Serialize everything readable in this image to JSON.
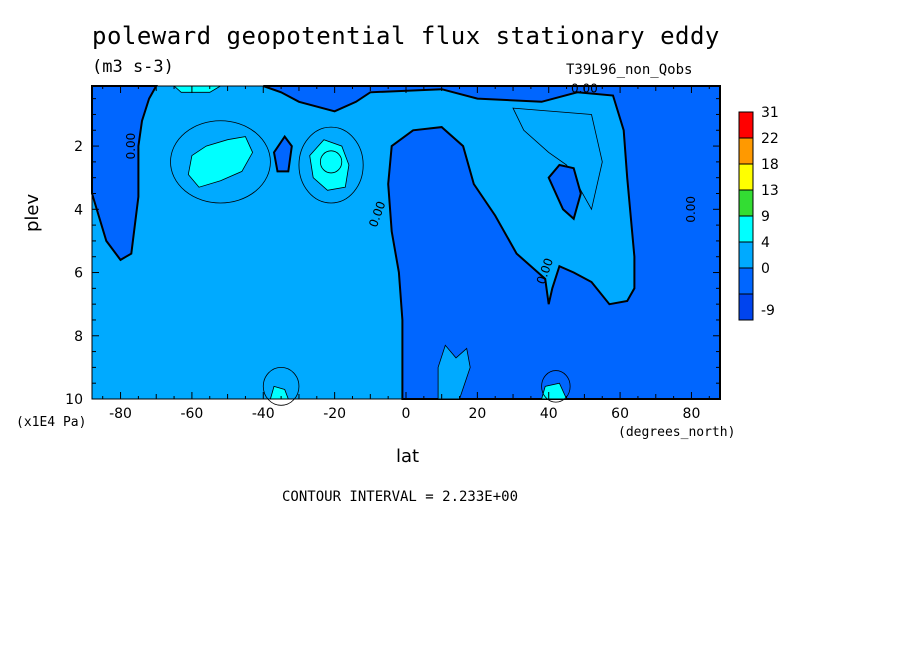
{
  "chart_data": {
    "type": "heatmap",
    "title": "poleward geopotential flux stationary eddy",
    "subtitle": "(m3 s-3)",
    "run_label": "T39L96_non_Qobs",
    "xlabel": "lat",
    "ylabel": "plev",
    "x_units": "(degrees_north)",
    "y_units": "(x1E4 Pa)",
    "xlim": [
      -88,
      88
    ],
    "ylim": [
      10,
      0.1
    ],
    "x_ticks": [
      -80,
      -60,
      -40,
      -20,
      0,
      20,
      40,
      60,
      80
    ],
    "y_ticks": [
      2,
      4,
      6,
      8,
      10
    ],
    "contour_interval_text": "CONTOUR INTERVAL = 2.233E+00",
    "contour_labels": [
      "0.00",
      "0.00",
      "0.00",
      "0.00",
      "0.00"
    ],
    "legend": {
      "placement": "right",
      "levels": [
        "31",
        "22",
        "18",
        "13",
        "9",
        "4",
        "0",
        "-9"
      ],
      "colors": [
        "#ff0000",
        "#ff9900",
        "#ffff00",
        "#33dd33",
        "#00ffff",
        "#00aaff",
        "#0066ff",
        "#0044ee"
      ]
    },
    "regions": [
      {
        "name": "background",
        "level_color": "#00aaff",
        "lat": [
          -88,
          88
        ],
        "plev": [
          0.1,
          10
        ]
      },
      {
        "name": "negative-west",
        "level_color": "#0066ff",
        "polygon": [
          [
            -88,
            0.1
          ],
          [
            -88,
            3.5
          ],
          [
            -84,
            5.0
          ],
          [
            -80,
            5.6
          ],
          [
            -77,
            5.4
          ],
          [
            -75,
            3.6
          ],
          [
            -75,
            2.0
          ],
          [
            -74,
            1.2
          ],
          [
            -72,
            0.5
          ],
          [
            -70,
            0.1
          ]
        ]
      },
      {
        "name": "negative-central",
        "level_color": "#0066ff",
        "polygon": [
          [
            -1,
            10
          ],
          [
            -1,
            7.5
          ],
          [
            -2,
            6.0
          ],
          [
            -4,
            4.7
          ],
          [
            -5,
            3.2
          ],
          [
            -4,
            2.0
          ],
          [
            2,
            1.5
          ],
          [
            10,
            1.4
          ],
          [
            16,
            2.0
          ],
          [
            19,
            3.2
          ],
          [
            25,
            4.2
          ],
          [
            31,
            5.4
          ],
          [
            39,
            6.2
          ],
          [
            40,
            7.0
          ],
          [
            41,
            6.5
          ],
          [
            43,
            5.8
          ],
          [
            47,
            6.0
          ],
          [
            52,
            6.3
          ],
          [
            57,
            7.0
          ],
          [
            62,
            6.9
          ],
          [
            64,
            6.5
          ],
          [
            64,
            5.5
          ],
          [
            62,
            3.0
          ],
          [
            61,
            1.5
          ],
          [
            58,
            0.4
          ],
          [
            48,
            0.3
          ],
          [
            38,
            0.6
          ],
          [
            20,
            0.5
          ],
          [
            10,
            0.2
          ],
          [
            -10,
            0.3
          ],
          [
            -14,
            0.6
          ],
          [
            -20,
            0.9
          ],
          [
            -30,
            0.6
          ],
          [
            -35,
            0.3
          ],
          [
            -40,
            0.1
          ],
          [
            88,
            0.1
          ],
          [
            88,
            10
          ]
        ]
      },
      {
        "name": "anomaly-island-bottom",
        "level_color": "#00aaff",
        "polygon": [
          [
            9,
            10
          ],
          [
            9,
            9.0
          ],
          [
            11,
            8.3
          ],
          [
            14,
            8.7
          ],
          [
            17,
            8.4
          ],
          [
            18,
            9.0
          ],
          [
            15,
            10
          ]
        ]
      },
      {
        "name": "anomaly-island-mid",
        "level_color": "#00aaff",
        "polygon": [
          [
            30,
            0.8
          ],
          [
            52,
            1.0
          ],
          [
            55,
            2.5
          ],
          [
            52,
            4.0
          ],
          [
            45,
            2.6
          ],
          [
            40,
            2.2
          ],
          [
            33,
            1.5
          ]
        ]
      },
      {
        "name": "positive-cell-south",
        "level_color": "#00ffff",
        "polygon": [
          [
            -60,
            2.3
          ],
          [
            -56,
            2.0
          ],
          [
            -50,
            1.8
          ],
          [
            -45,
            1.7
          ],
          [
            -43,
            2.2
          ],
          [
            -46,
            2.8
          ],
          [
            -52,
            3.1
          ],
          [
            -58,
            3.3
          ],
          [
            -61,
            2.9
          ]
        ]
      },
      {
        "name": "positive-cell-sub",
        "level_color": "#00ffff",
        "polygon": [
          [
            -27,
            2.3
          ],
          [
            -23,
            1.8
          ],
          [
            -18,
            2.0
          ],
          [
            -16,
            2.6
          ],
          [
            -17,
            3.3
          ],
          [
            -22,
            3.4
          ],
          [
            -26,
            3.0
          ]
        ]
      },
      {
        "name": "negative-small",
        "level_color": "#0066ff",
        "polygon": [
          [
            -37,
            2.2
          ],
          [
            -34,
            1.7
          ],
          [
            -32,
            2.0
          ],
          [
            -33,
            2.8
          ],
          [
            -36,
            2.8
          ]
        ]
      },
      {
        "name": "negative-east-patch",
        "level_color": "#0066ff",
        "polygon": [
          [
            40,
            3.0
          ],
          [
            43,
            2.6
          ],
          [
            47,
            2.7
          ],
          [
            49,
            3.5
          ],
          [
            47,
            4.3
          ],
          [
            44,
            4.0
          ]
        ]
      },
      {
        "name": "bottom-cells",
        "level_color": "#00ffff",
        "polygon": [
          [
            -38,
            10
          ],
          [
            -37,
            9.6
          ],
          [
            -34,
            9.7
          ],
          [
            -33,
            10
          ]
        ]
      },
      {
        "name": "bottom-cells-2",
        "level_color": "#00ffff",
        "polygon": [
          [
            38,
            10
          ],
          [
            39,
            9.6
          ],
          [
            43,
            9.5
          ],
          [
            45,
            10
          ]
        ]
      },
      {
        "name": "top-edge-cell",
        "level_color": "#00ffff",
        "polygon": [
          [
            -65,
            0.1
          ],
          [
            -63,
            0.3
          ],
          [
            -55,
            0.3
          ],
          [
            -52,
            0.1
          ]
        ]
      }
    ]
  }
}
